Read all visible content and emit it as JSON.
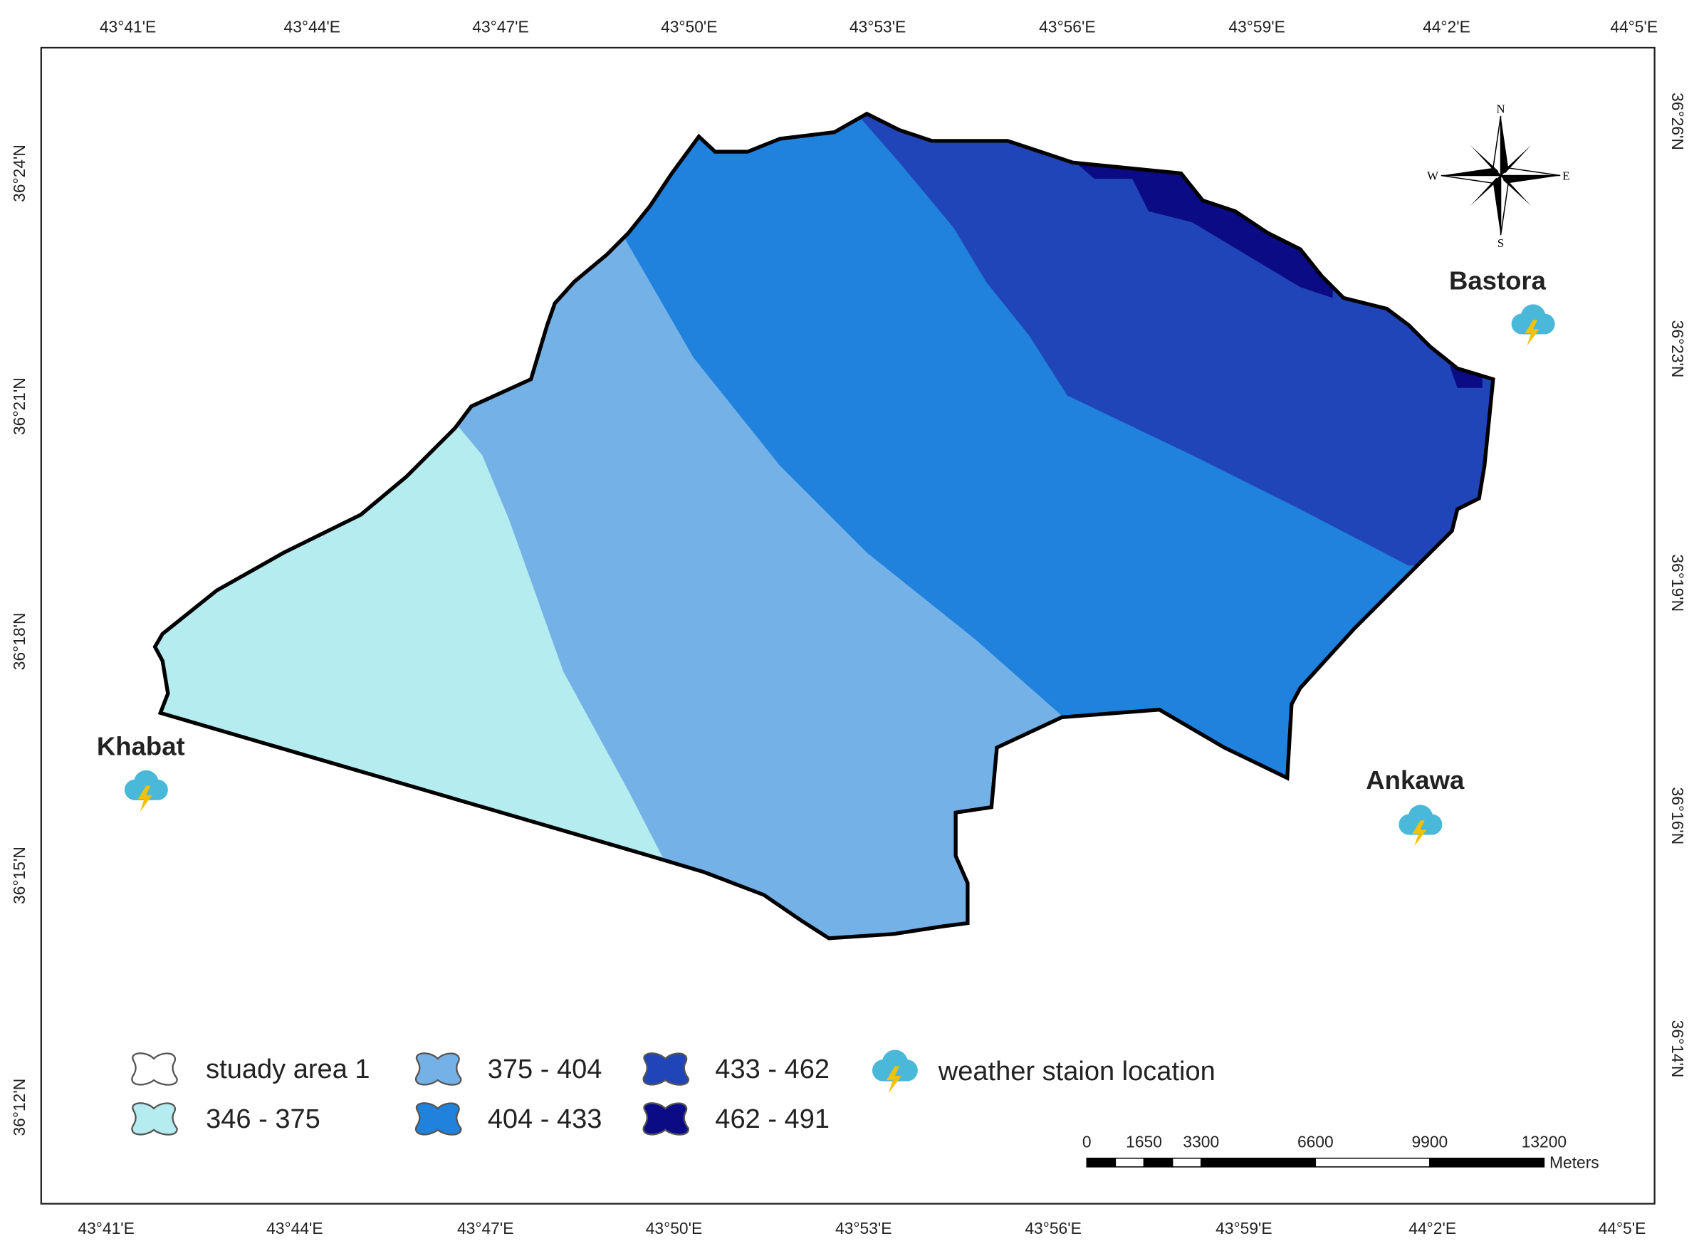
{
  "map": {
    "longitude_labels_top": [
      "43°41'E",
      "43°44'E",
      "43°47'E",
      "43°50'E",
      "43°53'E",
      "43°56'E",
      "43°59'E",
      "44°2'E",
      "44°5'E"
    ],
    "longitude_labels_bottom": [
      "43°41'E",
      "43°44'E",
      "43°47'E",
      "43°50'E",
      "43°53'E",
      "43°56'E",
      "43°59'E",
      "44°2'E",
      "44°5'E"
    ],
    "latitude_labels_left": [
      "36°24'N",
      "36°21'N",
      "36°18'N",
      "36°15'N",
      "36°12'N"
    ],
    "latitude_labels_right": [
      "36°26'N",
      "36°23'N",
      "36°19'N",
      "36°16'N",
      "36°14'N"
    ],
    "compass": {
      "n": "N",
      "s": "S",
      "e": "E",
      "w": "W"
    },
    "stations": [
      {
        "name": "Khabat"
      },
      {
        "name": "Bastora"
      },
      {
        "name": "Ankawa"
      }
    ],
    "legend": [
      {
        "label": "stuady area 1",
        "color": "#ffffff"
      },
      {
        "label": "346 - 375",
        "color": "#b4ecef"
      },
      {
        "label": "375 - 404",
        "color": "#74b1e6"
      },
      {
        "label": "404 - 433",
        "color": "#2082dd"
      },
      {
        "label": "433 - 462",
        "color": "#1f45b8"
      },
      {
        "label": "462 - 491",
        "color": "#0b0c85"
      },
      {
        "label": "weather staion location"
      }
    ],
    "scale_bar": {
      "values": [
        0,
        1650,
        3300,
        6600,
        9900,
        13200
      ],
      "unit": "Meters"
    }
  }
}
